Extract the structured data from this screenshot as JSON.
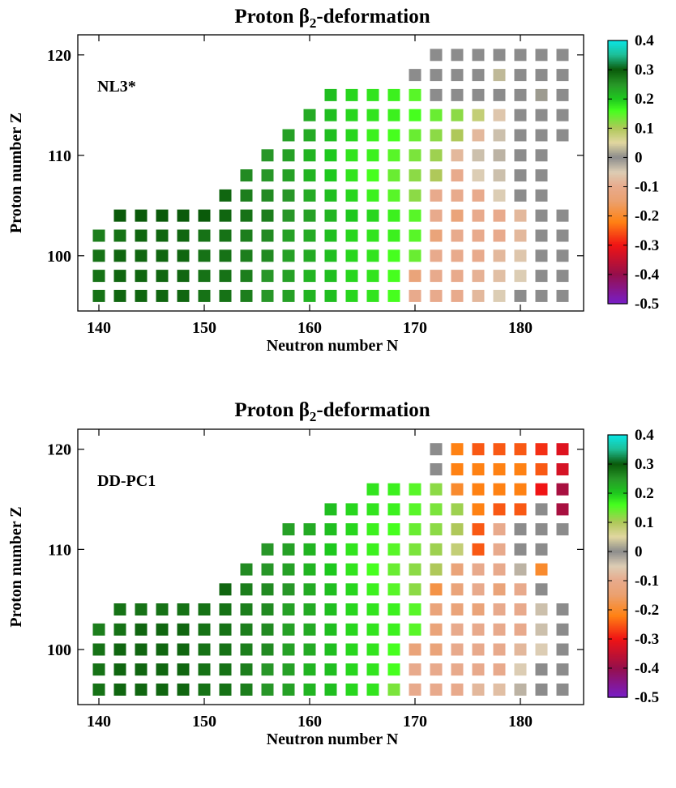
{
  "chart_data": [
    {
      "type": "heatmap",
      "title": "Proton β2-deformation",
      "title_main": "Proton β",
      "title_sub": "2",
      "title_rest": "-deformation",
      "model_label": "NL3*",
      "xlabel": "Neutron number  N",
      "ylabel": "Proton number  Z",
      "xlim": [
        138,
        186
      ],
      "ylim": [
        94.5,
        122
      ],
      "xticks": [
        140,
        150,
        160,
        170,
        180
      ],
      "yticks": [
        100,
        110,
        120
      ],
      "colorbar": {
        "range": [
          -0.5,
          0.4
        ],
        "ticks": [
          "0.4",
          "0.3",
          "0.2",
          "0.1",
          "0",
          "-0.1",
          "-0.2",
          "-0.3",
          "-0.4",
          "-0.5"
        ]
      },
      "rows": [
        {
          "Z": 96,
          "N_start": 140,
          "values": [
            0.28,
            0.29,
            0.29,
            0.29,
            0.29,
            0.28,
            0.28,
            0.27,
            0.25,
            0.24,
            0.22,
            0.21,
            0.19,
            0.18,
            0.16,
            -0.1,
            -0.1,
            -0.1,
            -0.08,
            -0.05,
            0.0,
            0.0,
            0.0
          ]
        },
        {
          "Z": 98,
          "N_start": 140,
          "values": [
            0.28,
            0.29,
            0.29,
            0.29,
            0.29,
            0.28,
            0.28,
            0.27,
            0.25,
            0.24,
            0.22,
            0.21,
            0.19,
            0.18,
            0.16,
            -0.13,
            -0.1,
            -0.1,
            -0.09,
            -0.07,
            -0.05,
            0.0,
            0.0
          ]
        },
        {
          "Z": 100,
          "N_start": 140,
          "values": [
            0.28,
            0.29,
            0.29,
            0.29,
            0.29,
            0.28,
            0.28,
            0.27,
            0.26,
            0.24,
            0.23,
            0.21,
            0.19,
            0.18,
            0.16,
            0.14,
            -0.1,
            -0.1,
            -0.1,
            -0.08,
            -0.06,
            0.0,
            0.0
          ]
        },
        {
          "Z": 102,
          "N_start": 140,
          "values": [
            0.27,
            0.28,
            0.29,
            0.29,
            0.29,
            0.28,
            0.28,
            0.27,
            0.26,
            0.24,
            0.23,
            0.21,
            0.19,
            0.18,
            0.17,
            0.15,
            -0.13,
            -0.1,
            -0.1,
            -0.1,
            -0.08,
            0.0,
            0.0
          ]
        },
        {
          "Z": 104,
          "N_start": 142,
          "values": [
            0.3,
            0.3,
            0.3,
            0.3,
            0.3,
            0.29,
            0.28,
            0.27,
            0.25,
            0.24,
            0.22,
            0.2,
            0.19,
            0.17,
            0.15,
            -0.1,
            -0.13,
            -0.1,
            -0.1,
            -0.08,
            0.0,
            0.0
          ]
        },
        {
          "Z": 106,
          "N_start": 152,
          "values": [
            0.29,
            0.27,
            0.26,
            0.25,
            0.23,
            0.21,
            0.19,
            0.17,
            0.15,
            0.12,
            -0.1,
            -0.1,
            -0.1,
            -0.05,
            0.0,
            0.0
          ]
        },
        {
          "Z": 108,
          "N_start": 154,
          "values": [
            0.26,
            0.25,
            0.24,
            0.22,
            0.2,
            0.18,
            0.16,
            0.14,
            0.12,
            0.1,
            -0.1,
            -0.05,
            -0.04,
            0.0,
            0.0
          ]
        },
        {
          "Z": 110,
          "N_start": 156,
          "values": [
            0.25,
            0.24,
            0.22,
            0.2,
            0.18,
            0.17,
            0.15,
            0.13,
            0.11,
            -0.08,
            -0.04,
            -0.03,
            0.0,
            0.0
          ]
        },
        {
          "Z": 112,
          "N_start": 158,
          "values": [
            0.24,
            0.23,
            0.21,
            0.19,
            0.17,
            0.16,
            0.14,
            0.12,
            0.1,
            -0.08,
            -0.04,
            0.0,
            0.0,
            0.0
          ]
        },
        {
          "Z": 114,
          "N_start": 160,
          "values": [
            0.23,
            0.21,
            0.19,
            0.18,
            0.17,
            0.16,
            0.14,
            0.12,
            0.08,
            -0.06,
            0.0,
            0.0,
            0.0
          ]
        },
        {
          "Z": 116,
          "N_start": 162,
          "values": [
            0.21,
            0.19,
            0.18,
            0.17,
            0.15,
            0.0,
            0.0,
            0.0,
            0.0,
            0.0,
            0.01,
            0.0
          ]
        },
        {
          "Z": 118,
          "N_start": 170,
          "values": [
            0.0,
            0.0,
            0.0,
            0.0,
            0.03,
            0.0,
            0.0,
            0.0
          ]
        },
        {
          "Z": 120,
          "N_start": 172,
          "values": [
            0.0,
            0.0,
            0.0,
            0.0,
            0.0,
            0.0,
            0.0
          ]
        }
      ]
    },
    {
      "type": "heatmap",
      "title": "Proton β2-deformation",
      "title_main": "Proton β",
      "title_sub": "2",
      "title_rest": "-deformation",
      "model_label": "DD-PC1",
      "xlabel": "Neutron number  N",
      "ylabel": "Proton number  Z",
      "xlim": [
        138,
        186
      ],
      "ylim": [
        94.5,
        122
      ],
      "xticks": [
        140,
        150,
        160,
        170,
        180
      ],
      "yticks": [
        100,
        110,
        120
      ],
      "colorbar": {
        "range": [
          -0.5,
          0.4
        ],
        "ticks": [
          "0.4",
          "0.3",
          "0.2",
          "0.1",
          "0",
          "-0.1",
          "-0.2",
          "-0.3",
          "-0.4",
          "-0.5"
        ]
      },
      "rows": [
        {
          "Z": 96,
          "N_start": 140,
          "values": [
            0.28,
            0.29,
            0.29,
            0.29,
            0.29,
            0.28,
            0.28,
            0.27,
            0.25,
            0.24,
            0.22,
            0.21,
            0.19,
            0.18,
            0.13,
            -0.1,
            -0.1,
            -0.1,
            -0.08,
            -0.07,
            -0.03,
            0.0,
            0.0
          ]
        },
        {
          "Z": 98,
          "N_start": 140,
          "values": [
            0.28,
            0.29,
            0.29,
            0.29,
            0.29,
            0.28,
            0.28,
            0.27,
            0.25,
            0.24,
            0.22,
            0.21,
            0.19,
            0.18,
            0.16,
            -0.1,
            -0.1,
            -0.1,
            -0.1,
            -0.1,
            -0.05,
            0.0,
            0.0
          ]
        },
        {
          "Z": 100,
          "N_start": 140,
          "values": [
            0.28,
            0.29,
            0.29,
            0.29,
            0.29,
            0.28,
            0.28,
            0.27,
            0.26,
            0.24,
            0.23,
            0.21,
            0.19,
            0.18,
            0.16,
            -0.13,
            -0.13,
            -0.1,
            -0.1,
            -0.1,
            -0.08,
            -0.05,
            0.0
          ]
        },
        {
          "Z": 102,
          "N_start": 140,
          "values": [
            0.27,
            0.28,
            0.29,
            0.29,
            0.29,
            0.28,
            0.28,
            0.27,
            0.26,
            0.24,
            0.23,
            0.21,
            0.19,
            0.18,
            0.17,
            0.15,
            -0.13,
            -0.1,
            -0.1,
            -0.1,
            -0.1,
            -0.04,
            0.0
          ]
        },
        {
          "Z": 104,
          "N_start": 142,
          "values": [
            0.28,
            0.28,
            0.28,
            0.28,
            0.28,
            0.28,
            0.27,
            0.26,
            0.24,
            0.23,
            0.21,
            0.19,
            0.18,
            0.17,
            0.15,
            -0.13,
            -0.13,
            -0.13,
            -0.1,
            -0.1,
            -0.04,
            0.0
          ]
        },
        {
          "Z": 106,
          "N_start": 152,
          "values": [
            0.29,
            0.27,
            0.26,
            0.25,
            0.23,
            0.21,
            0.19,
            0.17,
            0.15,
            0.12,
            -0.18,
            -0.13,
            -0.1,
            -0.13,
            -0.1,
            0.0
          ]
        },
        {
          "Z": 108,
          "N_start": 154,
          "values": [
            0.26,
            0.25,
            0.24,
            0.22,
            0.2,
            0.18,
            0.16,
            0.14,
            0.12,
            0.1,
            -0.13,
            -0.1,
            -0.1,
            -0.03,
            -0.2
          ]
        },
        {
          "Z": 110,
          "N_start": 156,
          "values": [
            0.25,
            0.24,
            0.22,
            0.2,
            0.18,
            0.17,
            0.15,
            0.13,
            0.11,
            0.08,
            -0.25,
            -0.1,
            0.0,
            0.0
          ]
        },
        {
          "Z": 112,
          "N_start": 158,
          "values": [
            0.24,
            0.23,
            0.21,
            0.19,
            0.17,
            0.16,
            0.14,
            0.12,
            0.1,
            -0.25,
            -0.1,
            0.0,
            0.0,
            0.0
          ]
        },
        {
          "Z": 114,
          "N_start": 162,
          "values": [
            0.21,
            0.19,
            0.18,
            0.17,
            0.15,
            0.13,
            0.11,
            -0.22,
            -0.25,
            -0.25,
            0.0,
            -0.38
          ]
        },
        {
          "Z": 116,
          "N_start": 166,
          "values": [
            0.18,
            0.17,
            0.15,
            0.12,
            -0.2,
            -0.22,
            -0.22,
            -0.22,
            -0.3,
            -0.38
          ]
        },
        {
          "Z": 118,
          "N_start": 172,
          "values": [
            0.0,
            -0.22,
            -0.22,
            -0.22,
            -0.22,
            -0.25,
            -0.33
          ]
        },
        {
          "Z": 120,
          "N_start": 172,
          "values": [
            0.0,
            -0.22,
            -0.25,
            -0.25,
            -0.25,
            -0.28,
            -0.32
          ]
        }
      ]
    }
  ]
}
